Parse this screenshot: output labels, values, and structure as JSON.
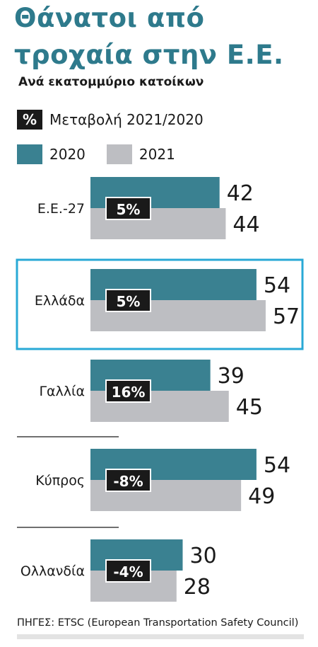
{
  "title": "Θάνατοι από τροχαία στην Ε.Ε.",
  "subtitle": "Ανά εκατομμύριο κατοίκων",
  "legend": {
    "pct_symbol": "%",
    "pct_label": "Μεταβολή 2021/2020",
    "series": [
      {
        "name": "2020",
        "color": "#3a8191"
      },
      {
        "name": "2021",
        "color": "#bdbec2"
      }
    ]
  },
  "chart_data": {
    "type": "bar",
    "orientation": "horizontal",
    "categories": [
      "Ε.Ε.-27",
      "Ελλάδα",
      "Γαλλία",
      "Κύπρος",
      "Ολλανδία"
    ],
    "series": [
      {
        "name": "2020",
        "values": [
          42,
          54,
          39,
          54,
          30
        ]
      },
      {
        "name": "2021",
        "values": [
          44,
          57,
          45,
          49,
          28
        ]
      }
    ],
    "change_labels": [
      "5%",
      "5%",
      "16%",
      "-8%",
      "-4%"
    ],
    "highlighted_category": "Ελλάδα",
    "highlight_color": "#29a9d6",
    "pct_badge_color": "#1a1a1a"
  },
  "source": "ΠΗΓΕΣ: ETSC (European Transportation Safety Council)"
}
